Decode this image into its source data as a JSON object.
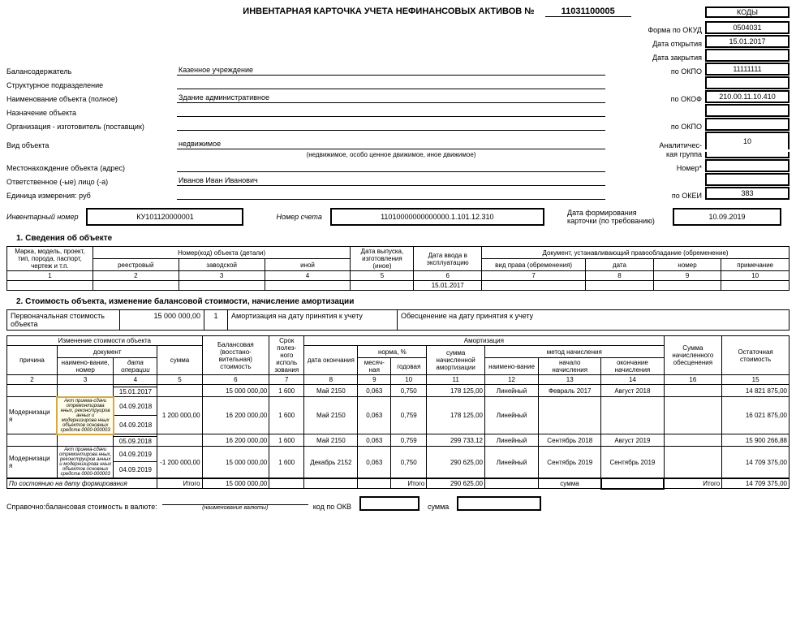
{
  "header": {
    "title": "ИНВЕНТАРНАЯ КАРТОЧКА УЧЕТА НЕФИНАНСОВЫХ АКТИВОВ  №",
    "doc_number": "11031100005",
    "codes_label": "КОДЫ"
  },
  "right_labels": {
    "okud": "Форма по ОКУД",
    "open_date": "Дата открытия",
    "close_date": "Дата закрытия",
    "okpo": "по ОКПО",
    "okof": "по ОКОФ",
    "okpo2": "по ОКПО",
    "analytic": "Аналитичес-",
    "group": "кая группа",
    "nomer": "Номер*",
    "okei": "по ОКЕИ"
  },
  "codes": {
    "okud": "0504031",
    "open_date": "15.01.2017",
    "close_date": "",
    "okpo": "11111111",
    "okof": "210.00.11.10.410",
    "okpo2": "",
    "analytic_group": "10",
    "nomer": "",
    "okei": "383"
  },
  "left": {
    "balance_holder_l": "Балансодержатель",
    "balance_holder_v": "Казенное учреждение",
    "struct_l": "Структурное подразделение",
    "struct_v": "",
    "name_l": "Наименование объекта (полное)",
    "name_v": "Здание административное",
    "purpose_l": "Назначение объекта",
    "purpose_v": "",
    "org_l": "Организация - изготовитель (поставщик)",
    "org_v": "",
    "type_l": "Вид объекта",
    "type_v": "недвижимое",
    "type_note": "(недвижимое, особо ценное движимое, иное движимое)",
    "loc_l": "Местонахождение объекта (адрес)",
    "loc_v": "",
    "resp_l": "Ответственное (-ые) лицо (-а)",
    "resp_v": "Иванов Иван Иванович",
    "unit_l": "Единица измерения: руб",
    "unit_v": ""
  },
  "num_row": {
    "inv_num_l": "Инвентарный номер",
    "inv_num_v": "КУ101120000001",
    "acc_num_l": "Номер счета",
    "acc_num_v": "11010000000000000.1.101.12.310",
    "card_date_l": "Дата формирования карточки (по требованию)",
    "card_date_v": "10.09.2019"
  },
  "section1": {
    "title": "1. Сведения об объекте",
    "h": {
      "c1": "Марка, модель, проект, тип, порода, паспорт, чертеж и т.п.",
      "c2_g": "Номер(код) объекта (детали)",
      "c2": "реестровый",
      "c3": "заводской",
      "c4": "иной",
      "c5": "Дата выпуска, изготовления (иное)",
      "c6": "Дата ввода в эксплуатацию",
      "c7_g": "Документ, устанавливающий правообладание (обременение)",
      "c7": "вид права (обременения)",
      "c8": "дата",
      "c9": "номер",
      "c10": "примечание"
    },
    "r": {
      "c6": "15.01.2017"
    }
  },
  "section2": {
    "title": "2. Стоимость объекта, изменение балансовой стоимости, начисление амортизации",
    "top": {
      "l1": "Первоначальная стоимость объекта",
      "v1": "15 000 000,00",
      "l2": "1",
      "l3": "Амортизация на дату принятия к учету",
      "l4": "Обесценение на дату принятия к учету"
    },
    "h": {
      "chg": "Изменение стоимости объекта",
      "doc": "документ",
      "reason": "причина",
      "name_num": "наимено-вание, номер",
      "op_date": "дата операции",
      "sum": "сумма",
      "bal": "Балансовая (восстано-вительная) стоимость",
      "term": "Срок полез-ного исполь зования",
      "end_date": "дата окончания",
      "amort": "Амортизация",
      "norm": "норма, %",
      "monthly": "месяч-ная",
      "yearly": "годовая",
      "amort_sum": "сумма начисленной амортизации",
      "method": "метод начисления",
      "method_name": "наимено-вание",
      "start": "начало начисления",
      "end": "окончание начисления",
      "deval": "Сумма начисленного обесценения",
      "residual": "Остаточная стоимость"
    },
    "cols": [
      "2",
      "3",
      "4",
      "5",
      "6",
      "7",
      "8",
      "9",
      "10",
      "11",
      "12",
      "13",
      "14",
      "16",
      "15"
    ],
    "rows": [
      {
        "reason": "",
        "docname": "",
        "docname2": "",
        "date1": "",
        "date2": "15.01.2017",
        "sum": "",
        "bal": "15 000 000,00",
        "term": "1 600",
        "enddate": "Май 2150",
        "m": "0,063",
        "y": "0,750",
        "asum": "178 125,00",
        "method": "Линейный",
        "start": "Февраль 2017",
        "end": "Август 2018",
        "deval": "",
        "res": "14 821 875,00",
        "highlight": false
      },
      {
        "reason": "Модернизаци я",
        "docname": "Акт приема-сдачи отремонтирова нных, реконструиров анных и модернизирова нных объектов основных средств 0000-000003",
        "date1": "04.09.2018",
        "date2": "04.09.2018",
        "sum": "1 200 000,00",
        "bal": "16 200 000,00",
        "term": "1 600",
        "enddate": "Май 2150",
        "m": "0,063",
        "y": "0,759",
        "asum": "178 125,00",
        "method": "Линейный",
        "start": "",
        "end": "",
        "deval": "",
        "res": "16 021 875,00",
        "highlight": true
      },
      {
        "reason": "",
        "docname": "",
        "date1": "",
        "date2": "05.09.2018",
        "sum": "",
        "bal": "16 200 000,00",
        "term": "1 600",
        "enddate": "Май 2150",
        "m": "0,063",
        "y": "0,759",
        "asum": "299 733,12",
        "method": "Линейный",
        "start": "Сентябрь 2018",
        "end": "Август 2019",
        "deval": "",
        "res": "15 900 266,88",
        "highlight": false
      },
      {
        "reason": "Модернизаци я",
        "docname": "Акт приема-сдачи отремонтирова нных, реконструиров анных и модернизирова нных объектов основных средств 0000-000003",
        "date1": "04.09.2019",
        "date2": "04.09.2019",
        "sum": "-1 200 000,00",
        "bal": "15 000 000,00",
        "term": "1 600",
        "enddate": "Декабрь 2152",
        "m": "0,063",
        "y": "0,750",
        "asum": "290 625,00",
        "method": "Линейный",
        "start": "Сентябрь 2019",
        "end": "Сентябрь 2019",
        "deval": "",
        "res": "14 709 375,00",
        "highlight": false
      }
    ],
    "total": {
      "label": "По состоянию на дату формирования",
      "itogo": "Итого",
      "bal": "15 000 000,00",
      "asum": "290 625,00",
      "sum": "сумма",
      "res": "14 709 375,00"
    }
  },
  "footer": {
    "l1": "Справочно:балансовая стоимость в валюте:",
    "sub": "(наименование валюты)",
    "l2": "код по ОКВ",
    "l3": "сумма"
  }
}
